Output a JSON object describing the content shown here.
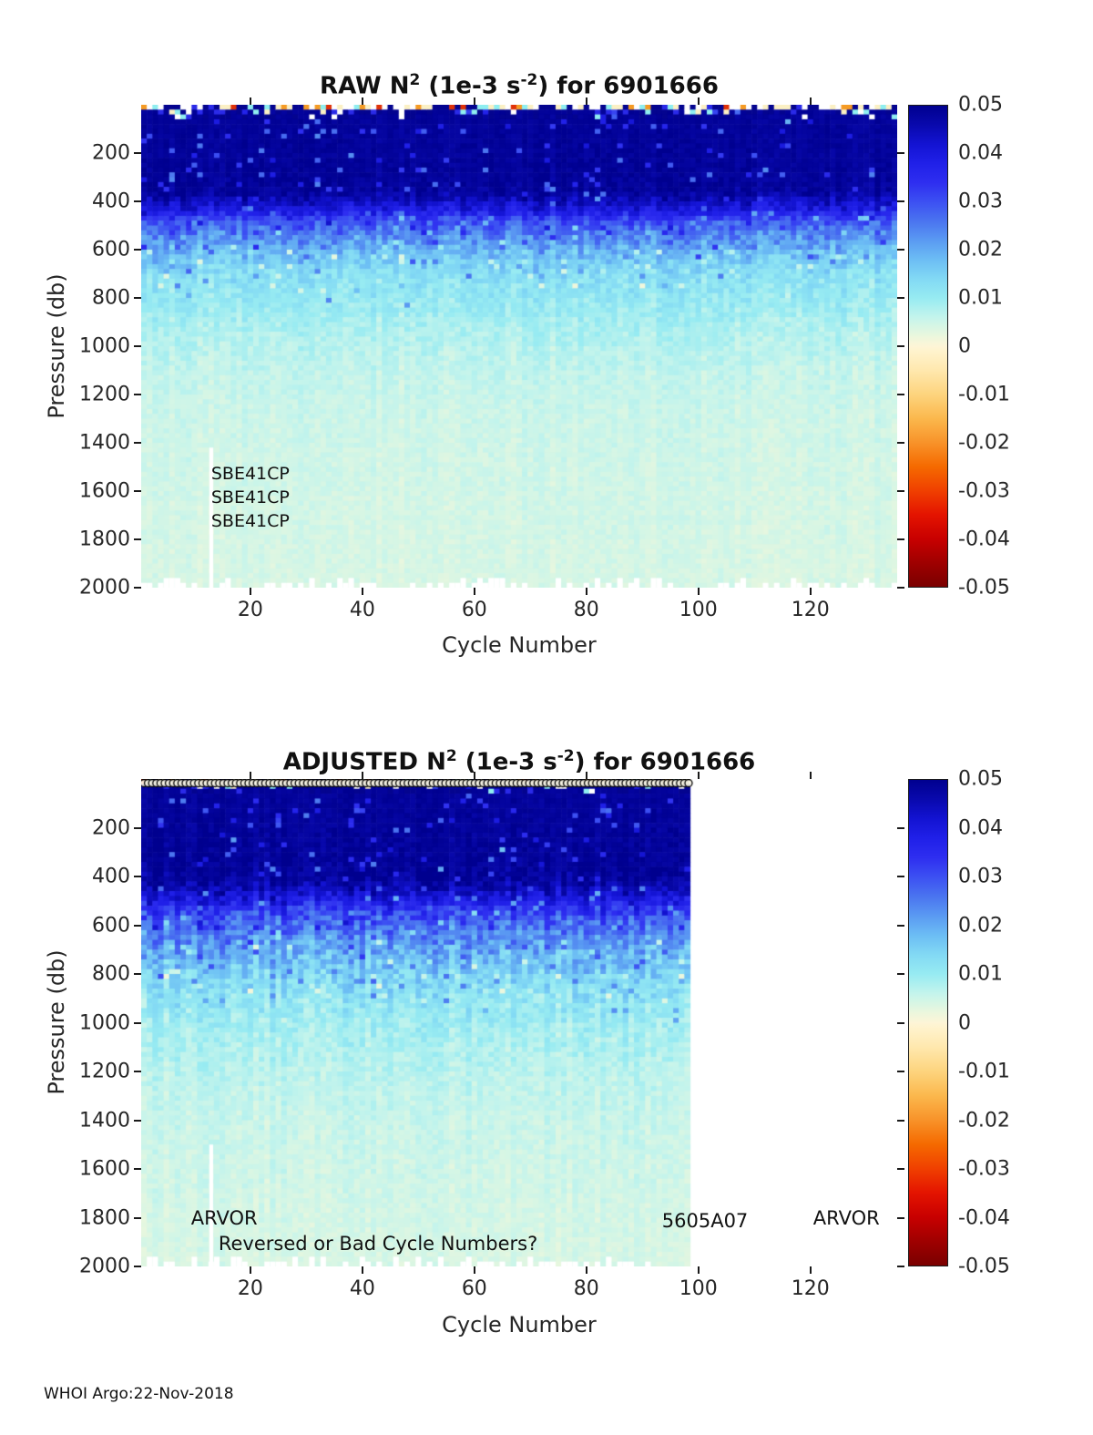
{
  "footer": "WHOI Argo:22-Nov-2018",
  "colormap": [
    [
      -0.05,
      "#7a0000"
    ],
    [
      -0.045,
      "#9f0000"
    ],
    [
      -0.04,
      "#c80000"
    ],
    [
      -0.035,
      "#e41400"
    ],
    [
      -0.03,
      "#f04000"
    ],
    [
      -0.025,
      "#f56a00"
    ],
    [
      -0.02,
      "#f8932a"
    ],
    [
      -0.015,
      "#fbb84d"
    ],
    [
      -0.01,
      "#fdd47e"
    ],
    [
      -0.005,
      "#ffe8ae"
    ],
    [
      -0.001,
      "#fff3cd"
    ],
    [
      0,
      "#fdf5d7"
    ],
    [
      0.002,
      "#ecf7dd"
    ],
    [
      0.004,
      "#d8f6e4"
    ],
    [
      0.006,
      "#c4f4ec"
    ],
    [
      0.01,
      "#97ebf2"
    ],
    [
      0.014,
      "#82d9f4"
    ],
    [
      0.018,
      "#6cbdf4"
    ],
    [
      0.022,
      "#5a9af2"
    ],
    [
      0.026,
      "#4a74f0"
    ],
    [
      0.03,
      "#3c50f2"
    ],
    [
      0.034,
      "#2e2ef0"
    ],
    [
      0.038,
      "#2020e8"
    ],
    [
      0.042,
      "#1313d2"
    ],
    [
      0.046,
      "#0909ad"
    ],
    [
      0.05,
      "#00008f"
    ]
  ],
  "surface_rows": [
    {
      "prob": 1.0,
      "palette": [
        [
          "#04048f",
          30
        ],
        [
          "#fbf0c4",
          20
        ],
        [
          "#ffffff",
          18
        ],
        [
          "#8feef0",
          12
        ],
        [
          "#f59b25",
          10
        ],
        [
          "#2a2ae8",
          6
        ],
        [
          "#e03208",
          4
        ]
      ]
    },
    {
      "prob": 0.5,
      "palette": [
        [
          "#04048f",
          55
        ],
        [
          "#ffffff",
          15
        ],
        [
          "#fbf0c4",
          8
        ],
        [
          "#8feef0",
          10
        ],
        [
          "#2a2ae8",
          12
        ]
      ]
    },
    {
      "prob": 0.25,
      "palette": [
        [
          "#04048f",
          72
        ],
        [
          "#ffffff",
          7
        ],
        [
          "#8feef0",
          8
        ],
        [
          "#2a2ae8",
          13
        ]
      ]
    }
  ],
  "chart_data": [
    {
      "type": "heatmap",
      "id": "raw",
      "title_text": "RAW N^2 (1e-3 s^-2) for 6901666",
      "title_segments": [
        {
          "t": "RAW N"
        },
        {
          "t": "2",
          "sup": true
        },
        {
          "t": " (1e-3 s"
        },
        {
          "t": "-2",
          "sup": true
        },
        {
          "t": ") for 6901666"
        }
      ],
      "xlabel": "Cycle Number",
      "ylabel": "Pressure (db)",
      "xlim": [
        1,
        135
      ],
      "ylim": [
        0,
        2000
      ],
      "y_axis_reversed": true,
      "xticks": [
        20,
        40,
        60,
        80,
        100,
        120
      ],
      "yticks": [
        200,
        400,
        600,
        800,
        1000,
        1200,
        1400,
        1600,
        1800,
        2000
      ],
      "colorbar_ticks": [
        0.05,
        0.04,
        0.03,
        0.02,
        0.01,
        0,
        -0.01,
        -0.02,
        -0.03,
        -0.04,
        -0.05
      ],
      "value_range": [
        -0.05,
        0.05
      ],
      "cols": 135,
      "rows": 100,
      "data_cols": 135,
      "seed": 42,
      "mean_profile": [
        [
          0,
          0.02
        ],
        [
          8,
          0.035
        ],
        [
          15,
          0.0485
        ],
        [
          360,
          0.0485
        ],
        [
          430,
          0.04
        ],
        [
          480,
          0.03
        ],
        [
          540,
          0.024
        ],
        [
          620,
          0.017
        ],
        [
          700,
          0.0125
        ],
        [
          820,
          0.01
        ],
        [
          950,
          0.0075
        ],
        [
          1100,
          0.006
        ],
        [
          1300,
          0.005
        ],
        [
          1600,
          0.0045
        ],
        [
          2000,
          0.004
        ]
      ],
      "noise_profile": [
        [
          0,
          0.0008
        ],
        [
          300,
          0.0015
        ],
        [
          420,
          0.004
        ],
        [
          520,
          0.0045
        ],
        [
          650,
          0.0035
        ],
        [
          900,
          0.002
        ],
        [
          1200,
          0.0012
        ],
        [
          2000,
          0.001
        ]
      ],
      "gap_column": 12,
      "gap_from_pressure": 1420,
      "bottom_gap_prob": 0.5,
      "top_markers": false,
      "annotations": [
        {
          "text": "SBE41CP",
          "cycle": 13,
          "pressure": 1530
        },
        {
          "text": "SBE41CP",
          "cycle": 13,
          "pressure": 1628
        },
        {
          "text": "SBE41CP",
          "cycle": 13,
          "pressure": 1726
        }
      ]
    },
    {
      "type": "heatmap",
      "id": "adjusted",
      "title_text": "ADJUSTED N^2 (1e-3 s^-2) for 6901666",
      "title_segments": [
        {
          "t": "ADJUSTED N"
        },
        {
          "t": "2",
          "sup": true
        },
        {
          "t": " (1e-3 s"
        },
        {
          "t": "-2",
          "sup": true
        },
        {
          "t": ") for 6901666"
        }
      ],
      "xlabel": "Cycle Number",
      "ylabel": "Pressure (db)",
      "xlim": [
        1,
        135
      ],
      "ylim": [
        0,
        2000
      ],
      "y_axis_reversed": true,
      "xticks": [
        20,
        40,
        60,
        80,
        100,
        120
      ],
      "yticks": [
        200,
        400,
        600,
        800,
        1000,
        1200,
        1400,
        1600,
        1800,
        2000
      ],
      "colorbar_ticks": [
        0.05,
        0.04,
        0.03,
        0.02,
        0.01,
        0,
        -0.01,
        -0.02,
        -0.03,
        -0.04,
        -0.05
      ],
      "value_range": [
        -0.05,
        0.05
      ],
      "cols": 135,
      "rows": 100,
      "data_cols": 98,
      "seed": 7,
      "mean_profile": [
        [
          0,
          0.02
        ],
        [
          8,
          0.035
        ],
        [
          15,
          0.0485
        ],
        [
          420,
          0.0485
        ],
        [
          490,
          0.04
        ],
        [
          545,
          0.032
        ],
        [
          610,
          0.026
        ],
        [
          700,
          0.02
        ],
        [
          800,
          0.015
        ],
        [
          900,
          0.0115
        ],
        [
          1050,
          0.0085
        ],
        [
          1200,
          0.0068
        ],
        [
          1400,
          0.0055
        ],
        [
          1700,
          0.0047
        ],
        [
          2000,
          0.004
        ]
      ],
      "noise_profile": [
        [
          0,
          0.0008
        ],
        [
          350,
          0.002
        ],
        [
          480,
          0.005
        ],
        [
          560,
          0.0055
        ],
        [
          700,
          0.005
        ],
        [
          850,
          0.004
        ],
        [
          1000,
          0.0025
        ],
        [
          1300,
          0.0015
        ],
        [
          2000,
          0.001
        ]
      ],
      "gap_column": 12,
      "gap_from_pressure": 1500,
      "bottom_gap_prob": 0.5,
      "top_markers": true,
      "top_markers_max_cycle": 99,
      "annotations": [
        {
          "text": "ARVOR",
          "cycle": 9.4,
          "pressure": 1802,
          "big": true
        },
        {
          "text": "Reversed or Bad Cycle Numbers?",
          "cycle": 14.3,
          "pressure": 1907,
          "big": true
        },
        {
          "text": "5605A07",
          "cycle": 93.5,
          "pressure": 1813,
          "big": true
        },
        {
          "text": "ARVOR",
          "cycle": 120.5,
          "pressure": 1802,
          "big": true
        }
      ]
    }
  ]
}
